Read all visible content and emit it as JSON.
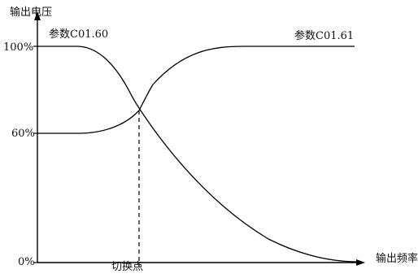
{
  "axes": {
    "y_label": "输出电压",
    "x_label": "输出频率",
    "y_ticks": [
      "100%",
      "60%",
      "0%"
    ]
  },
  "curves": {
    "falling_label": "参数C01.60",
    "rising_label": "参数C01.61"
  },
  "switch_point_label": "切换点",
  "line_color": "#000000"
}
